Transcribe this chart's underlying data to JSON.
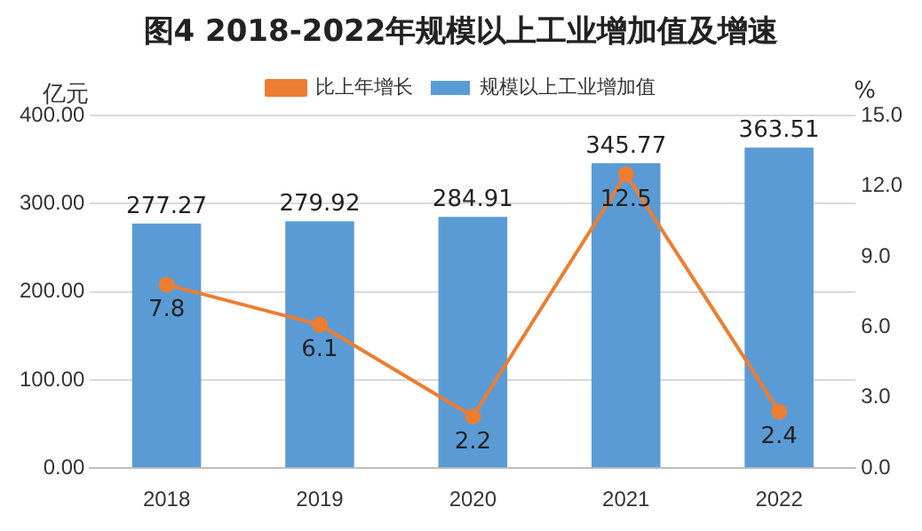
{
  "chart_data": {
    "type": "bar",
    "title": "图4  2018-2022年规模以上工业增加值及增速",
    "ylabel": "亿元",
    "y2label": "%",
    "categories": [
      "2018",
      "2019",
      "2020",
      "2021",
      "2022"
    ],
    "series": [
      {
        "name": "规模以上工业增加值",
        "color": "#5b9bd5",
        "values": [
          277.27,
          279.92,
          284.91,
          345.77,
          363.51
        ]
      },
      {
        "name": "比上年增长",
        "type": "line",
        "axis": "y2",
        "color": "#ed7d31",
        "values": [
          7.8,
          6.1,
          2.2,
          12.5,
          2.4
        ],
        "marker": "circle",
        "line_style": "solid"
      }
    ],
    "ylim": [
      0,
      400
    ],
    "yticks": [
      {
        "value": 0,
        "label": "0.00"
      },
      {
        "value": 100,
        "label": "100.00"
      },
      {
        "value": 200,
        "label": "200.00"
      },
      {
        "value": 300,
        "label": "300.00"
      },
      {
        "value": 400,
        "label": "400.00"
      }
    ],
    "y2lim": [
      0,
      15
    ],
    "y2ticks": [
      {
        "value": 0,
        "label": "0.0"
      },
      {
        "value": 3,
        "label": "3.0"
      },
      {
        "value": 6,
        "label": "6.0"
      },
      {
        "value": 9,
        "label": "9.0"
      },
      {
        "value": 12,
        "label": "12.0"
      },
      {
        "value": 15,
        "label": "15.0"
      }
    ],
    "grid": "y",
    "legend": "top",
    "data_labels": true
  }
}
